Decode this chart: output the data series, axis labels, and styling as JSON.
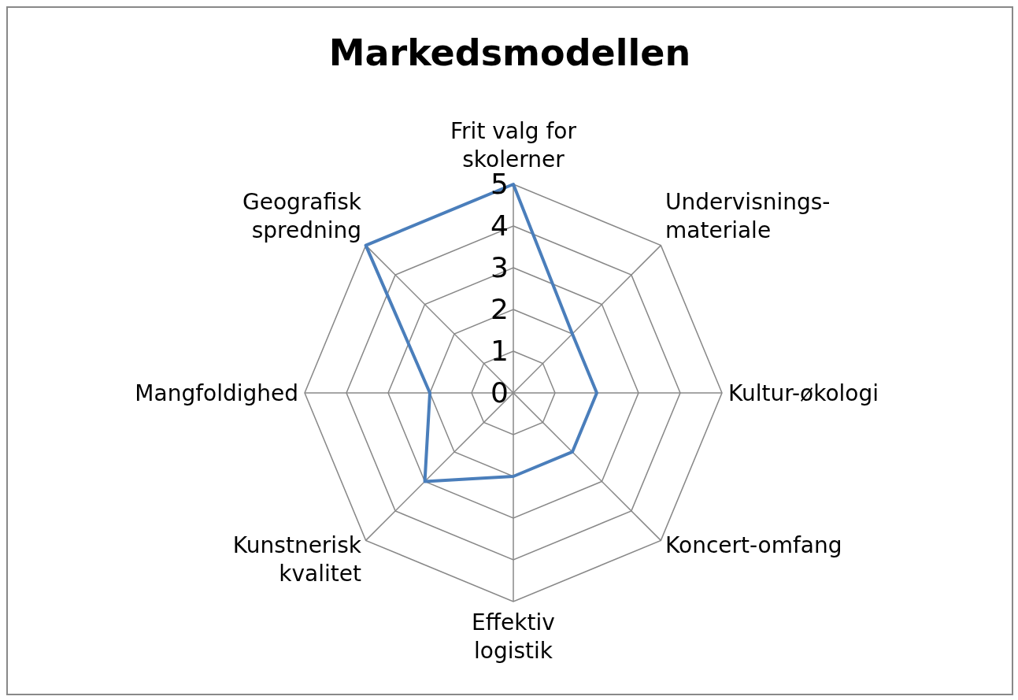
{
  "chart_data": {
    "type": "radar",
    "title": "Markedsmodellen",
    "categories": [
      "Frit valg for skolerner",
      "Undervisnings-materiale",
      "Kultur-økologi",
      "Koncert-omfang",
      "Effektiv logistik",
      "Kunstnerisk kvalitet",
      "Mangfoldighed",
      "Geografisk spredning"
    ],
    "series": [
      {
        "color": "#4a7ebb",
        "values": [
          5,
          2,
          2,
          2,
          2,
          3,
          2,
          5
        ]
      }
    ],
    "ylim": [
      0,
      5
    ],
    "yticks": [
      0,
      1,
      2,
      3,
      4,
      5
    ],
    "grid": true
  }
}
